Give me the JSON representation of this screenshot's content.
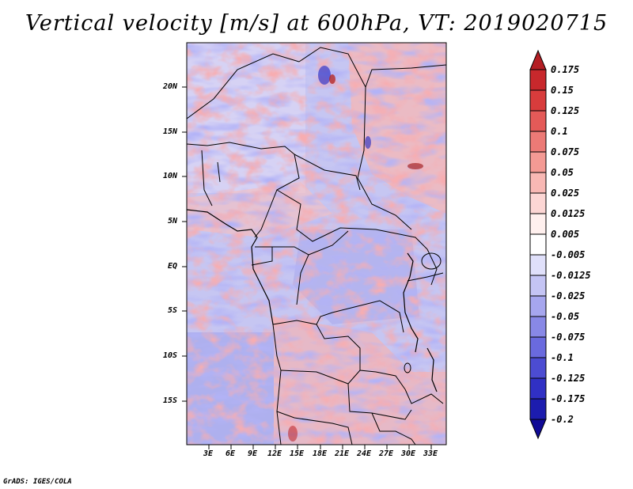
{
  "title": "Vertical velocity [m/s] at 600hPa, VT: 2019020715",
  "credit": "GrADS: IGES/COLA",
  "map": {
    "lat_ticks": [
      "20N",
      "15N",
      "10N",
      "5N",
      "EQ",
      "5S",
      "10S",
      "15S"
    ],
    "lon_ticks": [
      "3E",
      "6E",
      "9E",
      "12E",
      "15E",
      "18E",
      "21E",
      "24E",
      "27E",
      "30E",
      "33E"
    ]
  },
  "colorbar": {
    "labels": [
      "0.175",
      "0.15",
      "0.125",
      "0.1",
      "0.075",
      "0.05",
      "0.025",
      "0.0125",
      "0.005",
      "-0.005",
      "-0.0125",
      "-0.025",
      "-0.05",
      "-0.075",
      "-0.1",
      "-0.125",
      "-0.175",
      "-0.2"
    ],
    "colors": [
      "#b41e24",
      "#c8282c",
      "#d83c3c",
      "#e45a58",
      "#ec7a76",
      "#f49a94",
      "#f8b8b4",
      "#fcd6d4",
      "#fff0ee",
      "#ffffff",
      "#e0e0fa",
      "#c4c4f4",
      "#a6a6ee",
      "#8888e6",
      "#6a6ade",
      "#4c4cd2",
      "#3030c4",
      "#1c1cae",
      "#100a96"
    ]
  }
}
